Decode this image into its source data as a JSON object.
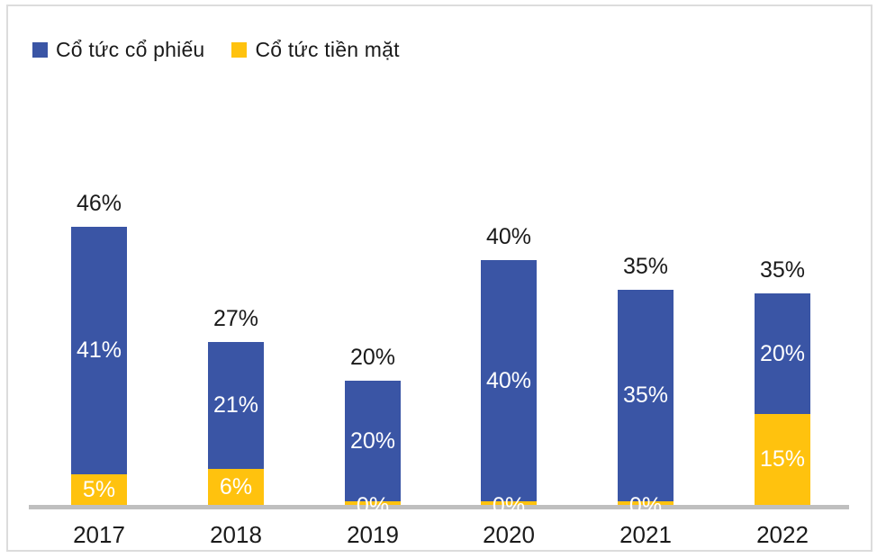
{
  "legend": {
    "items": [
      {
        "label": "Cổ tức cổ phiếu",
        "color": "#3a55a5"
      },
      {
        "label": "Cổ tức tiền mặt",
        "color": "#ffc20e"
      }
    ]
  },
  "colors": {
    "stock_blue": "#3a55a5",
    "cash_yellow": "#ffc20e",
    "axis_gray": "#bfbfbf",
    "label_white": "#ffffff",
    "label_black": "#1a1a1a"
  },
  "chart_data": {
    "type": "bar",
    "stacked": true,
    "legend_position": "top-left",
    "grid": false,
    "categories": [
      "2017",
      "2018",
      "2019",
      "2020",
      "2021",
      "2022"
    ],
    "series": [
      {
        "name": "Cổ tức cổ phiếu",
        "color": "#3a55a5",
        "values": [
          41,
          21,
          20,
          40,
          35,
          20
        ],
        "labels": [
          "41%",
          "21%",
          "20%",
          "40%",
          "35%",
          "20%"
        ]
      },
      {
        "name": "Cổ tức tiền mặt",
        "color": "#ffc20e",
        "values": [
          5,
          6,
          0,
          0,
          0,
          15
        ],
        "labels": [
          "5%",
          "6%",
          "0%",
          "0%",
          "0%",
          "15%"
        ]
      }
    ],
    "totals": [
      46,
      27,
      20,
      40,
      35,
      35
    ],
    "totals_labels": [
      "46%",
      "27%",
      "20%",
      "40%",
      "35%",
      "35%"
    ],
    "title": "",
    "xlabel": "",
    "ylabel": "",
    "unit": "%"
  }
}
